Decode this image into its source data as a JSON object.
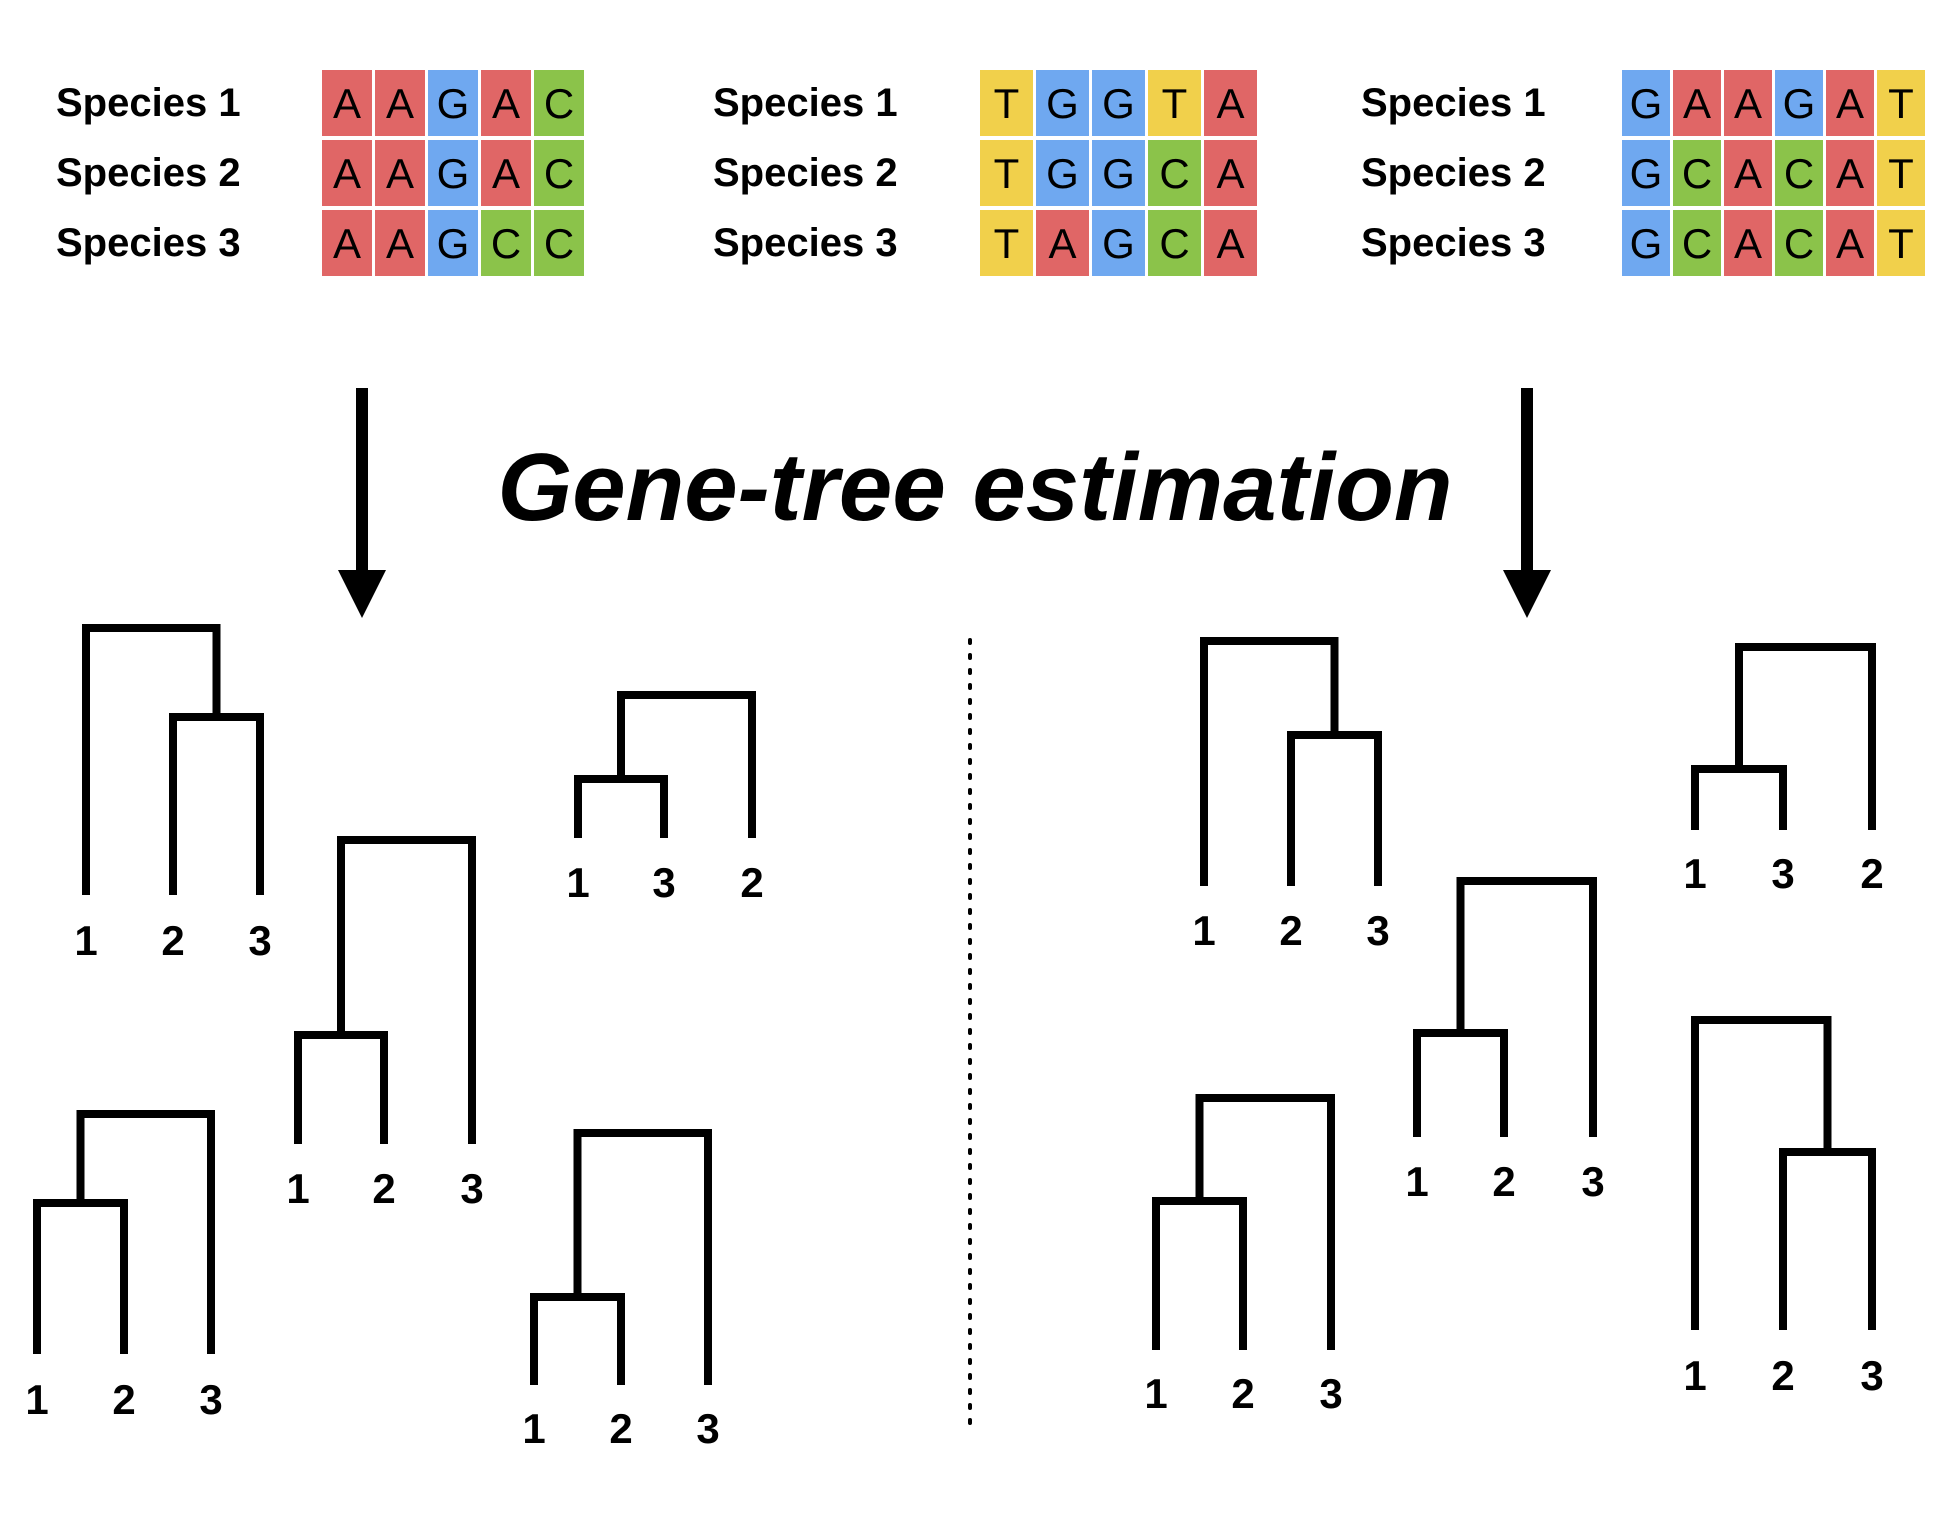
{
  "title": "Gene-tree estimation",
  "colors": {
    "A": "#e06666",
    "C": "#8bc34a",
    "G": "#6fa8f0",
    "T": "#f1d04b",
    "line": "#000000"
  },
  "alignments": [
    {
      "rows": [
        {
          "label": "Species 1",
          "seq": [
            "A",
            "A",
            "G",
            "A",
            "C"
          ]
        },
        {
          "label": "Species 2",
          "seq": [
            "A",
            "A",
            "G",
            "A",
            "C"
          ]
        },
        {
          "label": "Species 3",
          "seq": [
            "A",
            "A",
            "G",
            "C",
            "C"
          ]
        }
      ]
    },
    {
      "rows": [
        {
          "label": "Species 1",
          "seq": [
            "T",
            "G",
            "G",
            "T",
            "A"
          ]
        },
        {
          "label": "Species 2",
          "seq": [
            "T",
            "G",
            "G",
            "C",
            "A"
          ]
        },
        {
          "label": "Species 3",
          "seq": [
            "T",
            "A",
            "G",
            "C",
            "A"
          ]
        }
      ]
    },
    {
      "rows": [
        {
          "label": "Species 1",
          "seq": [
            "G",
            "A",
            "A",
            "G",
            "A",
            "T"
          ]
        },
        {
          "label": "Species 2",
          "seq": [
            "G",
            "C",
            "A",
            "C",
            "A",
            "T"
          ]
        },
        {
          "label": "Species 3",
          "seq": [
            "G",
            "C",
            "A",
            "C",
            "A",
            "T"
          ]
        }
      ]
    }
  ],
  "arrows": [
    {
      "name": "left-arrow",
      "side": "left"
    },
    {
      "name": "right-arrow",
      "side": "right"
    }
  ],
  "gene_trees": {
    "left_panel": [
      {
        "leaves": [
          "1",
          "2",
          "3"
        ],
        "shape": "outgroup-first"
      },
      {
        "leaves": [
          "1",
          "3",
          "2"
        ],
        "shape": "outgroup-last"
      },
      {
        "leaves": [
          "1",
          "2",
          "3"
        ],
        "shape": "outgroup-last"
      },
      {
        "leaves": [
          "1",
          "2",
          "3"
        ],
        "shape": "outgroup-last"
      },
      {
        "leaves": [
          "1",
          "2",
          "3"
        ],
        "shape": "outgroup-last"
      }
    ],
    "right_panel": [
      {
        "leaves": [
          "1",
          "2",
          "3"
        ],
        "shape": "outgroup-first"
      },
      {
        "leaves": [
          "1",
          "3",
          "2"
        ],
        "shape": "outgroup-last"
      },
      {
        "leaves": [
          "1",
          "2",
          "3"
        ],
        "shape": "outgroup-last"
      },
      {
        "leaves": [
          "1",
          "2",
          "3"
        ],
        "shape": "outgroup-last"
      },
      {
        "leaves": [
          "1",
          "2",
          "3"
        ],
        "shape": "outgroup-first"
      }
    ]
  }
}
